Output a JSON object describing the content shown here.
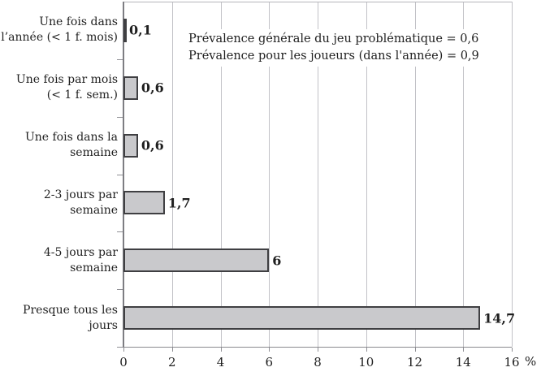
{
  "chart_data": {
    "type": "bar",
    "orientation": "horizontal",
    "title": "",
    "categories": [
      "Une fois dans l’année (< 1 f. mois)",
      "Une fois par mois (< 1 f. sem.)",
      "Une fois dans la semaine",
      "2-3 jours par semaine",
      "4-5 jours par semaine",
      "Presque tous les jours"
    ],
    "category_lines": [
      [
        "Une fois dans",
        "l’année (< 1 f. mois)"
      ],
      [
        "Une fois par mois",
        "(< 1 f. sem.)"
      ],
      [
        "Une fois dans la",
        "semaine"
      ],
      [
        "2-3 jours par",
        "semaine"
      ],
      [
        "4-5 jours par",
        "semaine"
      ],
      [
        "Presque tous les",
        "jours"
      ]
    ],
    "values": [
      0.1,
      0.6,
      0.6,
      1.7,
      6,
      14.7
    ],
    "value_labels": [
      "0,1",
      "0,6",
      "0,6",
      "1,7",
      "6",
      "14,7"
    ],
    "xlabel": "%",
    "ylabel": "",
    "xlim": [
      0,
      16
    ],
    "xticks": [
      0,
      2,
      4,
      6,
      8,
      10,
      12,
      14,
      16
    ],
    "xtick_labels": [
      "0",
      "2",
      "4",
      "6",
      "8",
      "10",
      "12",
      "14",
      "16"
    ],
    "axis_unit_label": "%",
    "grid": "vertical gridlines every 2 units",
    "legend_position": "none",
    "annotation_lines": [
      "Prévalence générale du jeu problématique = 0,6",
      "Prévalence pour les joueurs (dans l'année) = 0,9"
    ],
    "colors": {
      "bar_fill": "#c9c9cc",
      "bar_border": "#3f3f42",
      "gridline": "#c2c2c7",
      "axis": "#8a8a8f",
      "text": "#1f1f1f",
      "background": "#ffffff"
    }
  }
}
